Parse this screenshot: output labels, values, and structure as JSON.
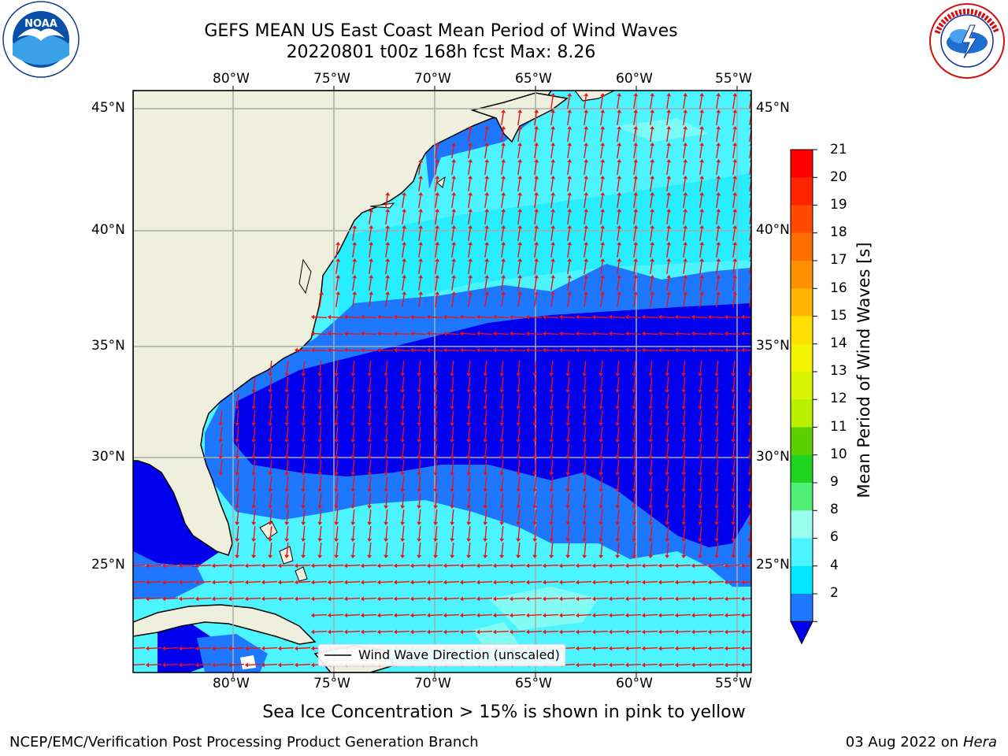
{
  "title_line1": "GEFS MEAN US East Coast Mean Period of Wind Waves",
  "title_line2": "20220801 t00z 168h fcst   Max: 8.26",
  "lon_labels": [
    "80°W",
    "75°W",
    "70°W",
    "65°W",
    "60°W",
    "55°W"
  ],
  "lat_labels": [
    "45°N",
    "40°N",
    "35°N",
    "30°N",
    "25°N"
  ],
  "legend_text": "Wind Wave Direction (unscaled)",
  "colorbar": {
    "title": "Mean Period of Wind Waves [s]",
    "ticks": [
      "21",
      "20",
      "19",
      "18",
      "17",
      "16",
      "15",
      "14",
      "13",
      "12",
      "11",
      "10",
      "9",
      "8",
      "6",
      "4",
      "2"
    ],
    "colors": [
      "#ff0000",
      "#ff2400",
      "#ff4a00",
      "#ff6e00",
      "#ff9000",
      "#ffb400",
      "#ffe000",
      "#f4f400",
      "#d8f400",
      "#b8f000",
      "#5ad000",
      "#1ed41e",
      "#50f078",
      "#9affee",
      "#4cf4ff",
      "#00e6ff",
      "#1e78ff"
    ],
    "extend_color": "#0000ee"
  },
  "ice_note": "Sea Ice Concentration > 15% is shown in pink to yellow",
  "footer_left": "NCEP/EMC/Verification Post Processing Product Generation Branch",
  "footer_date": "03 Aug 2022 on",
  "footer_host": "Hera",
  "logos": {
    "left": "noaa-logo-icon",
    "right": "nws-logo-icon"
  }
}
